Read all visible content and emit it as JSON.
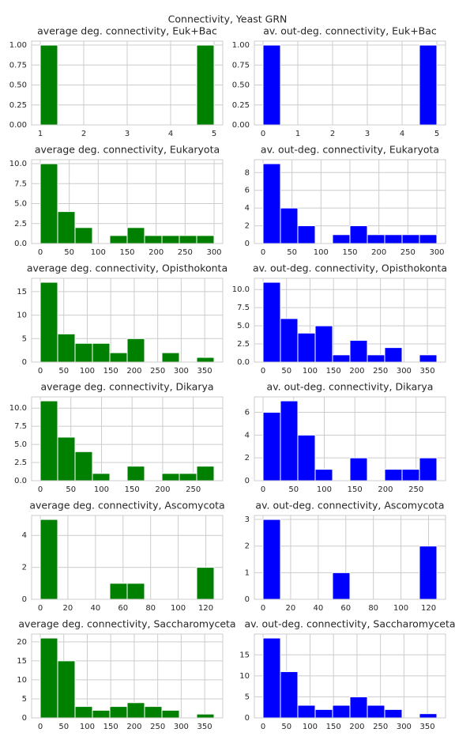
{
  "title": "Connectivity, Yeast GRN",
  "chart_data": [
    {
      "type": "histogram",
      "title": "average deg. connectivity, Euk+Bac",
      "color": "#008000",
      "grid": true,
      "bins": [
        1,
        1.4,
        1.8,
        2.2,
        2.6,
        3,
        3.4,
        3.8,
        4.2,
        4.6,
        5
      ],
      "counts": [
        1,
        0,
        0,
        0,
        0,
        0,
        0,
        0,
        0,
        1
      ],
      "xlim": [
        0.8,
        5.2
      ],
      "xticks": [
        1,
        2,
        3,
        4,
        5
      ],
      "ylim": [
        0,
        1.05
      ],
      "yticks": [
        {
          "value": 0,
          "label": "0.00"
        },
        {
          "value": 0.25,
          "label": "0.25"
        },
        {
          "value": 0.5,
          "label": "0.50"
        },
        {
          "value": 0.75,
          "label": "0.75"
        },
        {
          "value": 1,
          "label": "1.00"
        }
      ]
    },
    {
      "type": "histogram",
      "title": "av. out-deg. connectivity, Euk+Bac",
      "color": "#0000ff",
      "grid": true,
      "bins": [
        0,
        0.5,
        1,
        1.5,
        2,
        2.5,
        3,
        3.5,
        4,
        4.5,
        5
      ],
      "counts": [
        1,
        0,
        0,
        0,
        0,
        0,
        0,
        0,
        0,
        1
      ],
      "xlim": [
        -0.25,
        5.25
      ],
      "xticks": [
        0,
        1,
        2,
        3,
        4,
        5
      ],
      "ylim": [
        0,
        1.05
      ],
      "yticks": [
        {
          "value": 0,
          "label": "0.00"
        },
        {
          "value": 0.25,
          "label": "0.25"
        },
        {
          "value": 0.5,
          "label": "0.50"
        },
        {
          "value": 0.75,
          "label": "0.75"
        },
        {
          "value": 1,
          "label": "1.00"
        }
      ]
    },
    {
      "type": "histogram",
      "title": "average deg. connectivity, Eukaryota",
      "color": "#008000",
      "grid": true,
      "bins": [
        0,
        30,
        60,
        90,
        120,
        150,
        180,
        210,
        240,
        270,
        300
      ],
      "counts": [
        10,
        4,
        2,
        0,
        1,
        2,
        1,
        1,
        1,
        1
      ],
      "xlim": [
        -15,
        315
      ],
      "xticks": [
        0,
        50,
        100,
        150,
        200,
        250,
        300
      ],
      "ylim": [
        0,
        10.5
      ],
      "yticks": [
        {
          "value": 0,
          "label": "0.0"
        },
        {
          "value": 2.5,
          "label": "2.5"
        },
        {
          "value": 5,
          "label": "5.0"
        },
        {
          "value": 7.5,
          "label": "7.5"
        },
        {
          "value": 10,
          "label": "10.0"
        }
      ]
    },
    {
      "type": "histogram",
      "title": "av. out-deg. connectivity, Eukaryota",
      "color": "#0000ff",
      "grid": true,
      "bins": [
        0,
        30,
        60,
        90,
        120,
        150,
        180,
        210,
        240,
        270,
        300
      ],
      "counts": [
        9,
        4,
        2,
        0,
        1,
        2,
        1,
        1,
        1,
        1
      ],
      "xlim": [
        -15,
        315
      ],
      "xticks": [
        0,
        50,
        100,
        150,
        200,
        250,
        300
      ],
      "ylim": [
        0,
        9.45
      ],
      "yticks": [
        0,
        2,
        4,
        6,
        8
      ]
    },
    {
      "type": "histogram",
      "title": "average deg. connectivity, Opisthokonta",
      "color": "#008000",
      "grid": true,
      "bins": [
        0,
        37,
        74,
        111,
        148,
        185,
        222,
        259,
        296,
        333,
        370
      ],
      "counts": [
        17,
        6,
        4,
        4,
        2,
        5,
        0,
        2,
        0,
        1
      ],
      "xlim": [
        -18.5,
        388.5
      ],
      "xticks": [
        0,
        50,
        100,
        150,
        200,
        250,
        300,
        350
      ],
      "ylim": [
        0,
        17.85
      ],
      "yticks": [
        0,
        5,
        10,
        15
      ]
    },
    {
      "type": "histogram",
      "title": "av. out-deg. connectivity, Opisthokonta",
      "color": "#0000ff",
      "grid": true,
      "bins": [
        0,
        37,
        74,
        111,
        148,
        185,
        222,
        259,
        296,
        333,
        370
      ],
      "counts": [
        11,
        6,
        4,
        5,
        1,
        3,
        1,
        2,
        0,
        1
      ],
      "xlim": [
        -18.5,
        388.5
      ],
      "xticks": [
        0,
        50,
        100,
        150,
        200,
        250,
        300,
        350
      ],
      "ylim": [
        0,
        11.55
      ],
      "yticks": [
        {
          "value": 0,
          "label": "0.0"
        },
        {
          "value": 2.5,
          "label": "2.5"
        },
        {
          "value": 5,
          "label": "5.0"
        },
        {
          "value": 7.5,
          "label": "7.5"
        },
        {
          "value": 10,
          "label": "10.0"
        }
      ]
    },
    {
      "type": "histogram",
      "title": "average deg. connectivity, Dikarya",
      "color": "#008000",
      "grid": true,
      "bins": [
        0,
        28.4,
        56.8,
        85.2,
        113.6,
        142,
        170.4,
        198.8,
        227.2,
        255.6,
        284
      ],
      "counts": [
        11,
        6,
        4,
        1,
        0,
        2,
        0,
        1,
        1,
        2
      ],
      "xlim": [
        -14.2,
        298.2
      ],
      "xticks": [
        0,
        50,
        100,
        150,
        200,
        250
      ],
      "ylim": [
        0,
        11.55
      ],
      "yticks": [
        {
          "value": 0,
          "label": "0.0"
        },
        {
          "value": 2.5,
          "label": "2.5"
        },
        {
          "value": 5,
          "label": "5.0"
        },
        {
          "value": 7.5,
          "label": "7.5"
        },
        {
          "value": 10,
          "label": "10.0"
        }
      ]
    },
    {
      "type": "histogram",
      "title": "av. out-deg. connectivity, Dikarya",
      "color": "#0000ff",
      "grid": true,
      "bins": [
        0,
        28.4,
        56.8,
        85.2,
        113.6,
        142,
        170.4,
        198.8,
        227.2,
        255.6,
        284
      ],
      "counts": [
        6,
        7,
        4,
        1,
        0,
        2,
        0,
        1,
        1,
        2
      ],
      "xlim": [
        -14.2,
        298.2
      ],
      "xticks": [
        0,
        50,
        100,
        150,
        200,
        250
      ],
      "ylim": [
        0,
        7.35
      ],
      "yticks": [
        0,
        2,
        4,
        6
      ]
    },
    {
      "type": "histogram",
      "title": "average deg. connectivity, Ascomycota",
      "color": "#008000",
      "grid": true,
      "bins": [
        0,
        12.6,
        25.2,
        37.8,
        50.4,
        63,
        75.6,
        88.2,
        100.8,
        113.4,
        126
      ],
      "counts": [
        5,
        0,
        0,
        0,
        1,
        1,
        0,
        0,
        0,
        2
      ],
      "xlim": [
        -6.3,
        132.3
      ],
      "xticks": [
        0,
        20,
        40,
        60,
        80,
        100,
        120
      ],
      "ylim": [
        0,
        5.25
      ],
      "yticks": [
        0,
        2,
        4
      ]
    },
    {
      "type": "histogram",
      "title": "av. out-deg. connectivity, Ascomycota",
      "color": "#0000ff",
      "grid": true,
      "bins": [
        0,
        12.6,
        25.2,
        37.8,
        50.4,
        63,
        75.6,
        88.2,
        100.8,
        113.4,
        126
      ],
      "counts": [
        3,
        0,
        0,
        0,
        1,
        0,
        0,
        0,
        0,
        2
      ],
      "xlim": [
        -6.3,
        132.3
      ],
      "xticks": [
        0,
        20,
        40,
        60,
        80,
        100,
        120
      ],
      "ylim": [
        0,
        3.15
      ],
      "yticks": [
        0,
        1,
        2,
        3
      ]
    },
    {
      "type": "histogram",
      "title": "average deg. connectivity, Saccharomyceta",
      "color": "#008000",
      "grid": true,
      "bins": [
        0,
        37,
        74,
        111,
        148,
        185,
        222,
        259,
        296,
        333,
        370
      ],
      "counts": [
        21,
        15,
        3,
        2,
        3,
        4,
        3,
        2,
        0,
        1
      ],
      "xlim": [
        -18.5,
        388.5
      ],
      "xticks": [
        0,
        50,
        100,
        150,
        200,
        250,
        300,
        350
      ],
      "ylim": [
        0,
        22.05
      ],
      "yticks": [
        0,
        5,
        10,
        15,
        20
      ]
    },
    {
      "type": "histogram",
      "title": "av. out-deg. connectivity, Saccharomyceta",
      "color": "#0000ff",
      "grid": true,
      "bins": [
        0,
        37,
        74,
        111,
        148,
        185,
        222,
        259,
        296,
        333,
        370
      ],
      "counts": [
        19,
        11,
        3,
        2,
        3,
        5,
        3,
        2,
        0,
        1
      ],
      "xlim": [
        -18.5,
        388.5
      ],
      "xticks": [
        0,
        50,
        100,
        150,
        200,
        250,
        300,
        350
      ],
      "ylim": [
        0,
        19.95
      ],
      "yticks": [
        0,
        5,
        10,
        15
      ]
    }
  ]
}
